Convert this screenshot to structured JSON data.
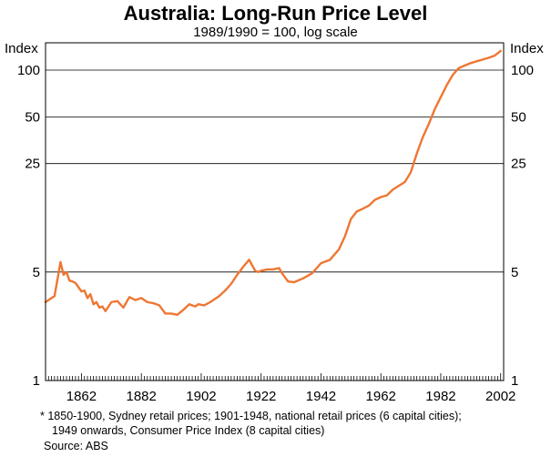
{
  "chart_data": {
    "type": "line",
    "title": "Australia: Long-Run Price Level",
    "subtitle": "1989/1990 = 100, log scale",
    "ylabel_left": "Index",
    "ylabel_right": "Index",
    "yscale": "log",
    "ylim": [
      1,
      150
    ],
    "xlim": [
      1850,
      2003
    ],
    "y_ticks": [
      1,
      5,
      25,
      50,
      100
    ],
    "y_tick_labels": [
      "1",
      "5",
      "25",
      "50",
      "100"
    ],
    "x_tick_labels": [
      "1862",
      "1882",
      "1902",
      "1922",
      "1942",
      "1962",
      "1982",
      "2002"
    ],
    "x_tick_values": [
      1862,
      1882,
      1902,
      1922,
      1942,
      1962,
      1982,
      2002
    ],
    "grid": true,
    "line_color": "#ee7733",
    "series": [
      {
        "name": "Price level",
        "x": [
          1850,
          1852,
          1853,
          1854,
          1855,
          1856,
          1857,
          1858,
          1859,
          1860,
          1862,
          1863,
          1864,
          1865,
          1866,
          1867,
          1868,
          1869,
          1870,
          1872,
          1874,
          1876,
          1878,
          1880,
          1882,
          1884,
          1886,
          1888,
          1890,
          1892,
          1894,
          1896,
          1898,
          1900,
          1901,
          1903,
          1905,
          1908,
          1910,
          1912,
          1914,
          1916,
          1918,
          1920,
          1921,
          1922,
          1924,
          1926,
          1928,
          1929,
          1931,
          1933,
          1936,
          1939,
          1942,
          1945,
          1948,
          1950,
          1952,
          1954,
          1956,
          1958,
          1960,
          1962,
          1964,
          1966,
          1968,
          1970,
          1972,
          1974,
          1976,
          1978,
          1980,
          1982,
          1984,
          1986,
          1988,
          1990,
          1992,
          1994,
          1996,
          1998,
          2000,
          2002
        ],
        "y": [
          3.2,
          3.4,
          3.5,
          4.5,
          5.8,
          4.8,
          5.0,
          4.4,
          4.35,
          4.25,
          3.75,
          3.8,
          3.4,
          3.6,
          3.1,
          3.2,
          2.95,
          3.0,
          2.8,
          3.2,
          3.25,
          2.95,
          3.45,
          3.3,
          3.4,
          3.2,
          3.15,
          3.05,
          2.7,
          2.7,
          2.65,
          2.85,
          3.1,
          3.0,
          3.1,
          3.05,
          3.2,
          3.5,
          3.8,
          4.2,
          4.8,
          5.4,
          6.0,
          5.1,
          5.0,
          5.1,
          5.2,
          5.2,
          5.3,
          4.9,
          4.35,
          4.3,
          4.55,
          4.9,
          5.7,
          6.0,
          7.0,
          8.5,
          11.0,
          12.3,
          12.8,
          13.4,
          14.6,
          15.2,
          15.6,
          17.0,
          18.0,
          19.0,
          22.0,
          29.0,
          37.0,
          45.0,
          56.0,
          67.0,
          80.0,
          93.0,
          103.0,
          107.0,
          111.0,
          114.0,
          117.0,
          120.0,
          124.0,
          133.0
        ]
      }
    ]
  },
  "footnote": {
    "line1": "* 1850-1900, Sydney retail prices; 1901-1948, national retail prices (6 capital cities);",
    "line2": "1949 onwards, Consumer Price Index (8 capital cities)"
  },
  "source": "Source: ABS"
}
